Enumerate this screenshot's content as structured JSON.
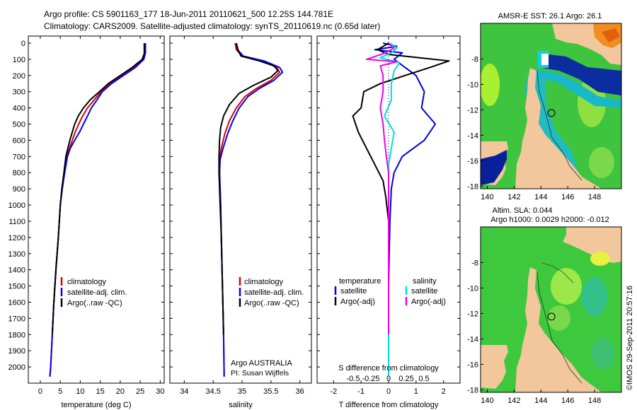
{
  "header": {
    "line1": "Argo profile: CS 5901163_177 18-Jun-2011 20110621_500 12.25S 144.781E",
    "line2": "Climatology: CARS2009. Satellite-adjusted climatology: synTS_20110619.nc (0.65d later)"
  },
  "colors": {
    "climatology": "#e00000",
    "satellite": "#0000ff",
    "argo": "#000000",
    "t_satellite": "#0000dd",
    "s_satellite": "#00dddd",
    "s_argo": "#ee00ee",
    "land": "#f2c79c"
  },
  "chart_data": [
    {
      "id": "temperature",
      "type": "line",
      "xlabel": "temperature (deg C)",
      "ylabel": "",
      "xlim": [
        -3,
        31
      ],
      "ylim": [
        0,
        2100
      ],
      "y_reversed": true,
      "xticks": [
        0,
        5,
        10,
        15,
        20,
        25,
        30
      ],
      "yticks": [
        0,
        100,
        200,
        300,
        400,
        500,
        600,
        700,
        800,
        900,
        1000,
        1100,
        1200,
        1300,
        1400,
        1500,
        1600,
        1700,
        1800,
        1900,
        2000
      ],
      "legend": [
        "climatology",
        "satellite-adj. clim.",
        "Argo(..raw -QC)"
      ],
      "series": [
        {
          "name": "climatology",
          "color": "#e00000",
          "points": [
            [
              26.1,
              0
            ],
            [
              26.1,
              60
            ],
            [
              25.6,
              100
            ],
            [
              23.5,
              150
            ],
            [
              20.5,
              200
            ],
            [
              17.5,
              250
            ],
            [
              15.2,
              300
            ],
            [
              13.5,
              350
            ],
            [
              11.8,
              400
            ],
            [
              10.6,
              450
            ],
            [
              9.6,
              500
            ],
            [
              8.7,
              550
            ],
            [
              8.0,
              600
            ],
            [
              7.3,
              650
            ],
            [
              6.6,
              700
            ],
            [
              6.0,
              800
            ],
            [
              5.4,
              900
            ],
            [
              5.0,
              1000
            ],
            [
              4.5,
              1200
            ],
            [
              3.9,
              1400
            ],
            [
              3.4,
              1600
            ],
            [
              3.0,
              1800
            ],
            [
              2.6,
              2000
            ],
            [
              2.4,
              2060
            ]
          ]
        },
        {
          "name": "satellite-adj. clim.",
          "color": "#0000ff",
          "points": [
            [
              26.3,
              0
            ],
            [
              26.3,
              60
            ],
            [
              25.9,
              100
            ],
            [
              23.8,
              150
            ],
            [
              20.8,
              200
            ],
            [
              17.8,
              250
            ],
            [
              15.5,
              300
            ],
            [
              14.2,
              350
            ],
            [
              12.8,
              400
            ],
            [
              11.8,
              450
            ],
            [
              10.8,
              500
            ],
            [
              9.8,
              550
            ],
            [
              8.6,
              600
            ],
            [
              7.5,
              650
            ],
            [
              6.8,
              700
            ],
            [
              6.1,
              800
            ],
            [
              5.5,
              900
            ],
            [
              5.0,
              1000
            ],
            [
              4.5,
              1200
            ],
            [
              3.9,
              1400
            ],
            [
              3.4,
              1600
            ],
            [
              3.0,
              1800
            ],
            [
              2.6,
              2000
            ],
            [
              2.4,
              2060
            ]
          ]
        },
        {
          "name": "Argo(..raw -QC)",
          "color": "#000000",
          "points": [
            [
              26.0,
              0
            ],
            [
              26.0,
              65
            ],
            [
              25.5,
              100
            ],
            [
              23.0,
              150
            ],
            [
              20.0,
              200
            ],
            [
              17.0,
              250
            ],
            [
              14.8,
              300
            ],
            [
              12.5,
              350
            ],
            [
              10.8,
              400
            ],
            [
              9.5,
              450
            ],
            [
              8.6,
              500
            ],
            [
              8.0,
              550
            ],
            [
              7.4,
              600
            ],
            [
              6.9,
              650
            ],
            [
              6.4,
              700
            ],
            [
              5.9,
              800
            ],
            [
              5.4,
              900
            ],
            [
              5.0,
              1000
            ],
            [
              4.5,
              1200
            ],
            [
              3.9,
              1400
            ],
            [
              3.4,
              1600
            ],
            [
              3.0,
              1800
            ]
          ]
        }
      ]
    },
    {
      "id": "salinity",
      "type": "line",
      "xlabel": "salinity",
      "xlim": [
        33.75,
        36.2
      ],
      "ylim": [
        0,
        2100
      ],
      "y_reversed": true,
      "xticks": [
        34,
        34.5,
        35,
        35.5,
        36
      ],
      "legend": [
        "climatology",
        "satellite-adj. clim.",
        "Argo(..raw -QC)"
      ],
      "annotation": [
        "Argo AUSTRALIA",
        "PI: Susan Wijffels"
      ],
      "series": [
        {
          "name": "climatology",
          "color": "#e00000",
          "points": [
            [
              34.88,
              0
            ],
            [
              34.9,
              40
            ],
            [
              35.0,
              80
            ],
            [
              35.35,
              110
            ],
            [
              35.6,
              150
            ],
            [
              35.65,
              180
            ],
            [
              35.5,
              230
            ],
            [
              35.25,
              280
            ],
            [
              35.05,
              330
            ],
            [
              34.9,
              400
            ],
            [
              34.78,
              480
            ],
            [
              34.7,
              560
            ],
            [
              34.64,
              650
            ],
            [
              34.61,
              720
            ],
            [
              34.61,
              800
            ],
            [
              34.62,
              900
            ],
            [
              34.63,
              1000
            ],
            [
              34.64,
              1200
            ],
            [
              34.66,
              1500
            ],
            [
              34.68,
              1800
            ],
            [
              34.69,
              2060
            ]
          ]
        },
        {
          "name": "satellite-adj. clim.",
          "color": "#0000ff",
          "points": [
            [
              34.9,
              0
            ],
            [
              34.92,
              40
            ],
            [
              35.02,
              80
            ],
            [
              35.38,
              110
            ],
            [
              35.65,
              150
            ],
            [
              35.7,
              180
            ],
            [
              35.55,
              230
            ],
            [
              35.3,
              280
            ],
            [
              35.1,
              330
            ],
            [
              34.95,
              400
            ],
            [
              34.84,
              480
            ],
            [
              34.75,
              560
            ],
            [
              34.67,
              650
            ],
            [
              34.62,
              720
            ],
            [
              34.61,
              800
            ],
            [
              34.62,
              900
            ],
            [
              34.63,
              1000
            ],
            [
              34.64,
              1200
            ],
            [
              34.66,
              1500
            ],
            [
              34.68,
              1800
            ],
            [
              34.69,
              2060
            ]
          ]
        },
        {
          "name": "Argo(..raw -QC)",
          "color": "#000000",
          "points": [
            [
              34.9,
              0
            ],
            [
              34.93,
              40
            ],
            [
              34.98,
              80
            ],
            [
              35.3,
              110
            ],
            [
              35.55,
              140
            ],
            [
              35.62,
              170
            ],
            [
              35.5,
              210
            ],
            [
              35.2,
              260
            ],
            [
              34.95,
              310
            ],
            [
              34.78,
              380
            ],
            [
              34.68,
              450
            ],
            [
              34.63,
              520
            ],
            [
              34.61,
              600
            ],
            [
              34.6,
              700
            ],
            [
              34.6,
              800
            ],
            [
              34.61,
              900
            ],
            [
              34.62,
              1000
            ],
            [
              34.64,
              1200
            ],
            [
              34.66,
              1500
            ],
            [
              34.68,
              1800
            ]
          ]
        }
      ]
    },
    {
      "id": "difference",
      "type": "line",
      "xlabel": "T difference from climatology",
      "top_label": "S difference from climatology",
      "xlim": [
        -2.6,
        2.6
      ],
      "ylim": [
        0,
        2100
      ],
      "y_reversed": true,
      "xticks": [
        -2,
        -1,
        0,
        1,
        2
      ],
      "xtick_labels": [
        "-2",
        "-1",
        "0",
        "1",
        "2"
      ],
      "sticks": [
        -0.5,
        -0.25,
        0,
        0.25,
        0.5
      ],
      "stick_labels": [
        "-0.5",
        "-0.25",
        "0",
        "0.25",
        "0.5"
      ],
      "legend_titles": [
        "temperature",
        "salinity"
      ],
      "legend": [
        "satellite",
        "Argo(-adj)",
        "satellite",
        "Argo(-adj)"
      ],
      "series": [
        {
          "name": "temperature satellite",
          "color": "#0000dd",
          "points": [
            [
              -0.2,
              0
            ],
            [
              0.3,
              20
            ],
            [
              -0.5,
              40
            ],
            [
              0.5,
              60
            ],
            [
              0.2,
              100
            ],
            [
              1.0,
              200
            ],
            [
              1.3,
              300
            ],
            [
              1.2,
              400
            ],
            [
              1.7,
              500
            ],
            [
              1.3,
              600
            ],
            [
              0.5,
              700
            ],
            [
              0.2,
              800
            ],
            [
              0.1,
              900
            ],
            [
              0.05,
              1100
            ],
            [
              0.0,
              1500
            ],
            [
              0.0,
              2060
            ]
          ]
        },
        {
          "name": "temperature Argo(-adj)",
          "color": "#000000",
          "points": [
            [
              0.0,
              0
            ],
            [
              -0.4,
              40
            ],
            [
              0.0,
              70
            ],
            [
              2.2,
              110
            ],
            [
              1.5,
              150
            ],
            [
              0.6,
              200
            ],
            [
              -0.3,
              250
            ],
            [
              -0.9,
              300
            ],
            [
              -1.0,
              400
            ],
            [
              -1.3,
              450
            ],
            [
              -1.1,
              550
            ],
            [
              -0.8,
              650
            ],
            [
              -0.5,
              750
            ],
            [
              -0.2,
              850
            ],
            [
              -0.1,
              950
            ],
            [
              0.0,
              1100
            ],
            [
              0.0,
              1500
            ],
            [
              0.0,
              1800
            ]
          ]
        },
        {
          "name": "salinity satellite",
          "color": "#00dddd",
          "points": [
            [
              0.05,
              0
            ],
            [
              0.3,
              30
            ],
            [
              0.1,
              60
            ],
            [
              -0.3,
              90
            ],
            [
              0.4,
              120
            ],
            [
              0.2,
              170
            ],
            [
              0.1,
              250
            ],
            [
              0.1,
              350
            ],
            [
              -0.15,
              450
            ],
            [
              0.2,
              550
            ],
            [
              0.1,
              650
            ],
            [
              0.0,
              750
            ],
            [
              0.0,
              900
            ],
            [
              0.0,
              1200
            ],
            [
              0.0,
              1600
            ],
            [
              0.0,
              2060
            ]
          ]
        },
        {
          "name": "salinity Argo(-adj)",
          "color": "#ee00ee",
          "points": [
            [
              0.0,
              0
            ],
            [
              0.2,
              30
            ],
            [
              -0.1,
              60
            ],
            [
              -0.8,
              100
            ],
            [
              0.3,
              115
            ],
            [
              -0.3,
              140
            ],
            [
              -0.2,
              200
            ],
            [
              -0.2,
              300
            ],
            [
              -0.3,
              400
            ],
            [
              -0.2,
              500
            ],
            [
              -0.15,
              600
            ],
            [
              -0.08,
              700
            ],
            [
              0.0,
              800
            ],
            [
              0.0,
              1000
            ],
            [
              0.0,
              1400
            ],
            [
              0.0,
              1800
            ]
          ]
        }
      ]
    },
    {
      "id": "sst_map",
      "type": "heatmap",
      "title": "AMSR-E SST: 26.1 Argo: 26.1",
      "xticks": [
        140,
        142,
        144,
        146,
        148
      ],
      "yticks": [
        -8,
        -10,
        -12,
        -14,
        -16,
        -18
      ],
      "xlim": [
        139.5,
        150
      ],
      "ylim": [
        -18.2,
        -5.2
      ],
      "marker": [
        144.781,
        -12.25
      ]
    },
    {
      "id": "sla_map",
      "type": "heatmap",
      "title_line1": "Altim. SLA: 0.044",
      "title_line2": "Argo h1000: 0.0029 h2000: -0.012",
      "xticks": [
        140,
        142,
        144,
        146,
        148
      ],
      "yticks": [
        -8,
        -10,
        -12,
        -14,
        -16,
        -18
      ],
      "xlim": [
        139.5,
        150
      ],
      "ylim": [
        -18.2,
        -5.2
      ],
      "marker": [
        144.781,
        -12.25
      ]
    }
  ],
  "footer": {
    "credit": "©IMOS 29-Sep-2011 20:57:16"
  }
}
